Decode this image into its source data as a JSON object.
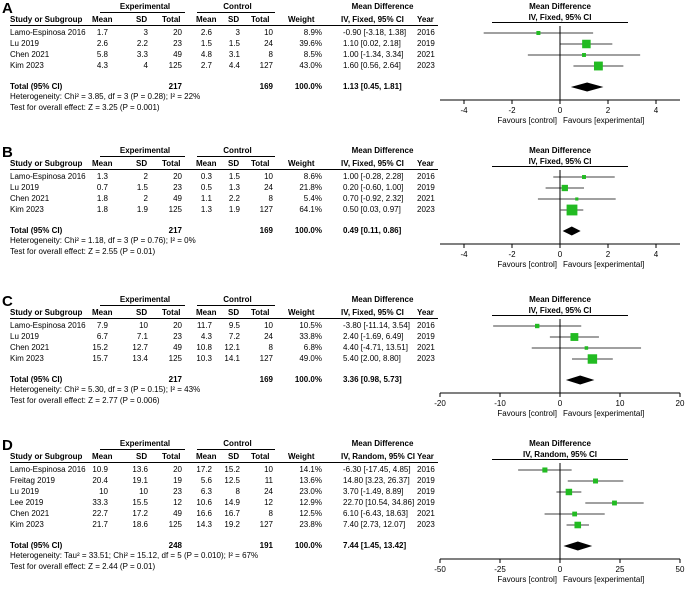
{
  "headers": {
    "experimental": "Experimental",
    "control": "Control",
    "mean_difference": "Mean Difference",
    "study": "Study or Subgroup",
    "mean": "Mean",
    "sd": "SD",
    "total": "Total",
    "weight": "Weight",
    "year": "Year",
    "favours_control": "Favours [control]",
    "favours_experimental": "Favours [experimental]"
  },
  "chart_data": [
    {
      "type": "forest",
      "label": "A",
      "method": "IV, Fixed, 95% CI",
      "studies": [
        {
          "study": "Lamo-Espinosa 2016",
          "e_mean": "1.7",
          "e_sd": "3",
          "e_total": "20",
          "c_mean": "2.6",
          "c_sd": "3",
          "c_total": "10",
          "weight": "8.9%",
          "md_text": "-0.90 [-3.18, 1.38]",
          "year": "2016",
          "md": -0.9,
          "lo": -3.18,
          "hi": 1.38,
          "w": 8.9
        },
        {
          "study": "Lu 2019",
          "e_mean": "2.6",
          "e_sd": "2.2",
          "e_total": "23",
          "c_mean": "1.5",
          "c_sd": "1.5",
          "c_total": "24",
          "weight": "39.6%",
          "md_text": "1.10 [0.02, 2.18]",
          "year": "2019",
          "md": 1.1,
          "lo": 0.02,
          "hi": 2.18,
          "w": 39.6
        },
        {
          "study": "Chen 2021",
          "e_mean": "5.8",
          "e_sd": "3.3",
          "e_total": "49",
          "c_mean": "4.8",
          "c_sd": "3.1",
          "c_total": "8",
          "weight": "8.5%",
          "md_text": "1.00 [-1.34, 3.34]",
          "year": "2021",
          "md": 1.0,
          "lo": -1.34,
          "hi": 3.34,
          "w": 8.5
        },
        {
          "study": "Kim 2023",
          "e_mean": "4.3",
          "e_sd": "4",
          "e_total": "125",
          "c_mean": "2.7",
          "c_sd": "4.4",
          "c_total": "127",
          "weight": "43.0%",
          "md_text": "1.60 [0.56, 2.64]",
          "year": "2023",
          "md": 1.6,
          "lo": 0.56,
          "hi": 2.64,
          "w": 43.0
        }
      ],
      "total": {
        "label": "Total (95% CI)",
        "e_total": "217",
        "c_total": "169",
        "weight": "100.0%",
        "md_text": "1.13 [0.45, 1.81]",
        "md": 1.13,
        "lo": 0.45,
        "hi": 1.81
      },
      "heterogeneity": "Heterogeneity: Chi² = 3.85, df = 3 (P = 0.28); I² = 22%",
      "overall": "Test for overall effect: Z = 3.25 (P = 0.001)",
      "xlim": [
        -5,
        5
      ],
      "ticks": [
        -4,
        -2,
        0,
        2,
        4
      ]
    },
    {
      "type": "forest",
      "label": "B",
      "method": "IV, Fixed, 95% CI",
      "studies": [
        {
          "study": "Lamo-Espinosa 2016",
          "e_mean": "1.3",
          "e_sd": "2",
          "e_total": "20",
          "c_mean": "0.3",
          "c_sd": "1.5",
          "c_total": "10",
          "weight": "8.6%",
          "md_text": "1.00 [-0.28, 2.28]",
          "year": "2016",
          "md": 1.0,
          "lo": -0.28,
          "hi": 2.28,
          "w": 8.6
        },
        {
          "study": "Lu 2019",
          "e_mean": "0.7",
          "e_sd": "1.5",
          "e_total": "23",
          "c_mean": "0.5",
          "c_sd": "1.3",
          "c_total": "24",
          "weight": "21.8%",
          "md_text": "0.20 [-0.60, 1.00]",
          "year": "2019",
          "md": 0.2,
          "lo": -0.6,
          "hi": 1.0,
          "w": 21.8
        },
        {
          "study": "Chen 2021",
          "e_mean": "1.8",
          "e_sd": "2",
          "e_total": "49",
          "c_mean": "1.1",
          "c_sd": "2.2",
          "c_total": "8",
          "weight": "5.4%",
          "md_text": "0.70 [-0.92, 2.32]",
          "year": "2021",
          "md": 0.7,
          "lo": -0.92,
          "hi": 2.32,
          "w": 5.4
        },
        {
          "study": "Kim 2023",
          "e_mean": "1.8",
          "e_sd": "1.9",
          "e_total": "125",
          "c_mean": "1.3",
          "c_sd": "1.9",
          "c_total": "127",
          "weight": "64.1%",
          "md_text": "0.50 [0.03, 0.97]",
          "year": "2023",
          "md": 0.5,
          "lo": 0.03,
          "hi": 0.97,
          "w": 64.1
        }
      ],
      "total": {
        "label": "Total (95% CI)",
        "e_total": "217",
        "c_total": "169",
        "weight": "100.0%",
        "md_text": "0.49 [0.11, 0.86]",
        "md": 0.49,
        "lo": 0.11,
        "hi": 0.86
      },
      "heterogeneity": "Heterogeneity: Chi² = 1.18, df = 3 (P = 0.76); I² = 0%",
      "overall": "Test for overall effect: Z = 2.55 (P = 0.01)",
      "xlim": [
        -5,
        5
      ],
      "ticks": [
        -4,
        -2,
        0,
        2,
        4
      ]
    },
    {
      "type": "forest",
      "label": "C",
      "method": "IV, Fixed, 95% CI",
      "studies": [
        {
          "study": "Lamo-Espinosa 2016",
          "e_mean": "7.9",
          "e_sd": "10",
          "e_total": "20",
          "c_mean": "11.7",
          "c_sd": "9.5",
          "c_total": "10",
          "weight": "10.5%",
          "md_text": "-3.80 [-11.14, 3.54]",
          "year": "2016",
          "md": -3.8,
          "lo": -11.14,
          "hi": 3.54,
          "w": 10.5
        },
        {
          "study": "Lu 2019",
          "e_mean": "6.7",
          "e_sd": "7.1",
          "e_total": "23",
          "c_mean": "4.3",
          "c_sd": "7.2",
          "c_total": "24",
          "weight": "33.8%",
          "md_text": "2.40 [-1.69, 6.49]",
          "year": "2019",
          "md": 2.4,
          "lo": -1.69,
          "hi": 6.49,
          "w": 33.8
        },
        {
          "study": "Chen 2021",
          "e_mean": "15.2",
          "e_sd": "12.7",
          "e_total": "49",
          "c_mean": "10.8",
          "c_sd": "12.1",
          "c_total": "8",
          "weight": "6.8%",
          "md_text": "4.40 [-4.71, 13.51]",
          "year": "2021",
          "md": 4.4,
          "lo": -4.71,
          "hi": 13.51,
          "w": 6.8
        },
        {
          "study": "Kim 2023",
          "e_mean": "15.7",
          "e_sd": "13.4",
          "e_total": "125",
          "c_mean": "10.3",
          "c_sd": "14.1",
          "c_total": "127",
          "weight": "49.0%",
          "md_text": "5.40 [2.00, 8.80]",
          "year": "2023",
          "md": 5.4,
          "lo": 2.0,
          "hi": 8.8,
          "w": 49.0
        }
      ],
      "total": {
        "label": "Total (95% CI)",
        "e_total": "217",
        "c_total": "169",
        "weight": "100.0%",
        "md_text": "3.36 [0.98, 5.73]",
        "md": 3.36,
        "lo": 0.98,
        "hi": 5.73
      },
      "heterogeneity": "Heterogeneity: Chi² = 5.30, df = 3 (P = 0.15); I² = 43%",
      "overall": "Test for overall effect: Z = 2.77 (P = 0.006)",
      "xlim": [
        -20,
        20
      ],
      "ticks": [
        -20,
        -10,
        0,
        10,
        20
      ]
    },
    {
      "type": "forest",
      "label": "D",
      "method": "IV, Random, 95% CI",
      "studies": [
        {
          "study": "Lamo-Espinosa 2016",
          "e_mean": "10.9",
          "e_sd": "13.6",
          "e_total": "20",
          "c_mean": "17.2",
          "c_sd": "15.2",
          "c_total": "10",
          "weight": "14.1%",
          "md_text": "-6.30 [-17.45, 4.85]",
          "year": "2016",
          "md": -6.3,
          "lo": -17.45,
          "hi": 4.85,
          "w": 14.1
        },
        {
          "study": "Freitag 2019",
          "e_mean": "20.4",
          "e_sd": "19.1",
          "e_total": "19",
          "c_mean": "5.6",
          "c_sd": "12.5",
          "c_total": "11",
          "weight": "13.6%",
          "md_text": "14.80 [3.23, 26.37]",
          "year": "2019",
          "md": 14.8,
          "lo": 3.23,
          "hi": 26.37,
          "w": 13.6
        },
        {
          "study": "Lu 2019",
          "e_mean": "10",
          "e_sd": "10",
          "e_total": "23",
          "c_mean": "6.3",
          "c_sd": "8",
          "c_total": "24",
          "weight": "23.0%",
          "md_text": "3.70 [-1.49, 8.89]",
          "year": "2019",
          "md": 3.7,
          "lo": -1.49,
          "hi": 8.89,
          "w": 23.0
        },
        {
          "study": "Lee 2019",
          "e_mean": "33.3",
          "e_sd": "15.5",
          "e_total": "12",
          "c_mean": "10.6",
          "c_sd": "14.9",
          "c_total": "12",
          "weight": "12.9%",
          "md_text": "22.70 [10.54, 34.86]",
          "year": "2019",
          "md": 22.7,
          "lo": 10.54,
          "hi": 34.86,
          "w": 12.9
        },
        {
          "study": "Chen 2021",
          "e_mean": "22.7",
          "e_sd": "17.2",
          "e_total": "49",
          "c_mean": "16.6",
          "c_sd": "16.7",
          "c_total": "8",
          "weight": "12.5%",
          "md_text": "6.10 [-6.43, 18.63]",
          "year": "2021",
          "md": 6.1,
          "lo": -6.43,
          "hi": 18.63,
          "w": 12.5
        },
        {
          "study": "Kim 2023",
          "e_mean": "21.7",
          "e_sd": "18.6",
          "e_total": "125",
          "c_mean": "14.3",
          "c_sd": "19.2",
          "c_total": "127",
          "weight": "23.8%",
          "md_text": "7.40 [2.73, 12.07]",
          "year": "2023",
          "md": 7.4,
          "lo": 2.73,
          "hi": 12.07,
          "w": 23.8
        }
      ],
      "total": {
        "label": "Total (95% CI)",
        "e_total": "248",
        "c_total": "191",
        "weight": "100.0%",
        "md_text": "7.44 [1.45, 13.42]",
        "md": 7.44,
        "lo": 1.45,
        "hi": 13.42
      },
      "heterogeneity": "Heterogeneity: Tau² = 33.51; Chi² = 15.12, df = 5 (P = 0.010); I² = 67%",
      "overall": "Test for overall effect: Z = 2.44 (P = 0.01)",
      "xlim": [
        -50,
        50
      ],
      "ticks": [
        -50,
        -25,
        0,
        25,
        50
      ]
    }
  ]
}
